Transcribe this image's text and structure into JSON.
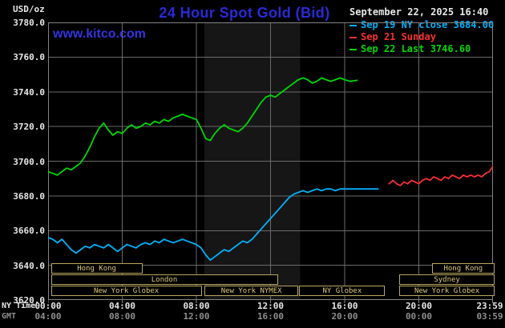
{
  "header": {
    "title": "24 Hour Spot Gold (Bid)",
    "date_line": "September 22, 2025 16:40",
    "units_label": "USD/oz",
    "site_link": "www.kitco.com"
  },
  "legend": {
    "items": [
      {
        "color": "#00b0f8",
        "text": "Sep 19 NY close 3684.00"
      },
      {
        "color": "#f83030",
        "text": "Sep 21 Sunday"
      },
      {
        "color": "#00d800",
        "text": "Sep 22 Last 3746.60"
      }
    ]
  },
  "axis": {
    "ny_time_label": "NY Time",
    "gmt_label": "GMT",
    "ny_ticks": [
      {
        "t": 0,
        "label": "00:00"
      },
      {
        "t": 4,
        "label": "04:00"
      },
      {
        "t": 8,
        "label": "08:00"
      },
      {
        "t": 12,
        "label": "12:00"
      },
      {
        "t": 16,
        "label": "16:00"
      },
      {
        "t": 20,
        "label": "20:00"
      },
      {
        "t": 23.98,
        "label": "23:59"
      }
    ],
    "gmt_ticks": [
      {
        "t": 0,
        "label": "04:00"
      },
      {
        "t": 4,
        "label": "08:00"
      },
      {
        "t": 8,
        "label": "12:00"
      },
      {
        "t": 12,
        "label": "16:00"
      },
      {
        "t": 16,
        "label": "20:00"
      },
      {
        "t": 20,
        "label": "00:00"
      },
      {
        "t": 23.98,
        "label": "03:59"
      }
    ]
  },
  "colors": {
    "background": "#000000",
    "title_blue": "#2a2ad8",
    "link_blue": "#3434e0",
    "text_white": "#e8e8e8",
    "text_gray": "#8f8f8f",
    "session_gold": "#dcc97c"
  },
  "chart_data": {
    "type": "line",
    "title": "24 Hour Spot Gold (Bid)",
    "ylabel": "USD/oz",
    "ylim": [
      3620,
      3780
    ],
    "xlim_hours": [
      0,
      24
    ],
    "grid": true,
    "grid_color": "#6b6b6b",
    "border_color": "#848484",
    "y_ticks": [
      3780,
      3760,
      3740,
      3720,
      3700,
      3680,
      3660,
      3640,
      3620
    ],
    "x_gridlines_hours": [
      4,
      8,
      12,
      16,
      20
    ],
    "shaded_bands": [
      {
        "t_start": 8.43,
        "t_end": 13.6,
        "color": "#161616"
      }
    ],
    "series": [
      {
        "id": "sep22",
        "name": "Sep 22 Last 3746.60",
        "color": "#00d800",
        "points": [
          [
            0,
            3694
          ],
          [
            0.25,
            3693
          ],
          [
            0.5,
            3692
          ],
          [
            0.75,
            3694
          ],
          [
            1,
            3696
          ],
          [
            1.25,
            3695
          ],
          [
            1.5,
            3697
          ],
          [
            1.75,
            3699
          ],
          [
            2,
            3703
          ],
          [
            2.25,
            3708
          ],
          [
            2.5,
            3714
          ],
          [
            2.75,
            3719
          ],
          [
            3,
            3722
          ],
          [
            3.25,
            3718
          ],
          [
            3.5,
            3715
          ],
          [
            3.75,
            3717
          ],
          [
            4,
            3716
          ],
          [
            4.25,
            3719
          ],
          [
            4.5,
            3721
          ],
          [
            4.75,
            3719
          ],
          [
            5,
            3720
          ],
          [
            5.25,
            3722
          ],
          [
            5.5,
            3721
          ],
          [
            5.75,
            3723
          ],
          [
            6,
            3722
          ],
          [
            6.25,
            3724
          ],
          [
            6.5,
            3723
          ],
          [
            6.75,
            3725
          ],
          [
            7,
            3726
          ],
          [
            7.25,
            3727
          ],
          [
            7.5,
            3726
          ],
          [
            7.75,
            3725
          ],
          [
            8,
            3724
          ],
          [
            8.25,
            3719
          ],
          [
            8.5,
            3713
          ],
          [
            8.75,
            3712
          ],
          [
            9,
            3716
          ],
          [
            9.25,
            3719
          ],
          [
            9.5,
            3721
          ],
          [
            9.75,
            3719
          ],
          [
            10,
            3718
          ],
          [
            10.25,
            3717
          ],
          [
            10.5,
            3719
          ],
          [
            10.75,
            3722
          ],
          [
            11,
            3726
          ],
          [
            11.25,
            3730
          ],
          [
            11.5,
            3734
          ],
          [
            11.75,
            3737
          ],
          [
            12,
            3738
          ],
          [
            12.25,
            3737
          ],
          [
            12.5,
            3739
          ],
          [
            12.75,
            3741
          ],
          [
            13,
            3743
          ],
          [
            13.25,
            3745
          ],
          [
            13.5,
            3747
          ],
          [
            13.75,
            3748
          ],
          [
            14,
            3747
          ],
          [
            14.25,
            3745
          ],
          [
            14.5,
            3746
          ],
          [
            14.75,
            3748
          ],
          [
            15,
            3747
          ],
          [
            15.25,
            3746
          ],
          [
            15.5,
            3747
          ],
          [
            15.75,
            3748
          ],
          [
            16,
            3747
          ],
          [
            16.3,
            3746
          ],
          [
            16.67,
            3746.6
          ]
        ]
      },
      {
        "id": "sep19",
        "name": "Sep 19 NY close 3684.00",
        "color": "#00b0f8",
        "points": [
          [
            0,
            3656
          ],
          [
            0.25,
            3655
          ],
          [
            0.5,
            3653
          ],
          [
            0.75,
            3655
          ],
          [
            1,
            3652
          ],
          [
            1.25,
            3649
          ],
          [
            1.5,
            3647
          ],
          [
            1.75,
            3649
          ],
          [
            2,
            3651
          ],
          [
            2.25,
            3650
          ],
          [
            2.5,
            3652
          ],
          [
            2.75,
            3651
          ],
          [
            3,
            3650
          ],
          [
            3.25,
            3652
          ],
          [
            3.5,
            3650
          ],
          [
            3.75,
            3648
          ],
          [
            4,
            3650
          ],
          [
            4.25,
            3652
          ],
          [
            4.5,
            3651
          ],
          [
            4.75,
            3650
          ],
          [
            5,
            3652
          ],
          [
            5.25,
            3653
          ],
          [
            5.5,
            3652
          ],
          [
            5.75,
            3654
          ],
          [
            6,
            3653
          ],
          [
            6.25,
            3655
          ],
          [
            6.5,
            3654
          ],
          [
            6.75,
            3653
          ],
          [
            7,
            3654
          ],
          [
            7.25,
            3655
          ],
          [
            7.5,
            3654
          ],
          [
            7.75,
            3653
          ],
          [
            8,
            3652
          ],
          [
            8.25,
            3650
          ],
          [
            8.5,
            3646
          ],
          [
            8.75,
            3643
          ],
          [
            9,
            3645
          ],
          [
            9.25,
            3647
          ],
          [
            9.5,
            3649
          ],
          [
            9.75,
            3648
          ],
          [
            10,
            3650
          ],
          [
            10.25,
            3652
          ],
          [
            10.5,
            3654
          ],
          [
            10.75,
            3653
          ],
          [
            11,
            3655
          ],
          [
            11.25,
            3658
          ],
          [
            11.5,
            3661
          ],
          [
            11.75,
            3664
          ],
          [
            12,
            3667
          ],
          [
            12.25,
            3670
          ],
          [
            12.5,
            3673
          ],
          [
            12.75,
            3676
          ],
          [
            13,
            3679
          ],
          [
            13.25,
            3681
          ],
          [
            13.5,
            3682
          ],
          [
            13.75,
            3683
          ],
          [
            14,
            3682
          ],
          [
            14.25,
            3683
          ],
          [
            14.5,
            3684
          ],
          [
            14.75,
            3683
          ],
          [
            15,
            3684
          ],
          [
            15.25,
            3684
          ],
          [
            15.5,
            3683
          ],
          [
            15.75,
            3684
          ],
          [
            16,
            3684
          ],
          [
            16.5,
            3684
          ],
          [
            17,
            3684
          ],
          [
            17.4,
            3684
          ],
          [
            17.8,
            3684
          ]
        ]
      },
      {
        "id": "sep21",
        "name": "Sep 21 Sunday",
        "color": "#f83030",
        "points": [
          [
            18.4,
            3687
          ],
          [
            18.6,
            3689
          ],
          [
            18.8,
            3687
          ],
          [
            19,
            3686
          ],
          [
            19.2,
            3688
          ],
          [
            19.4,
            3687
          ],
          [
            19.6,
            3689
          ],
          [
            19.8,
            3688
          ],
          [
            20,
            3687
          ],
          [
            20.2,
            3689
          ],
          [
            20.4,
            3690
          ],
          [
            20.6,
            3689
          ],
          [
            20.8,
            3691
          ],
          [
            21,
            3690
          ],
          [
            21.2,
            3689
          ],
          [
            21.4,
            3691
          ],
          [
            21.6,
            3690
          ],
          [
            21.8,
            3692
          ],
          [
            22,
            3691
          ],
          [
            22.2,
            3690
          ],
          [
            22.4,
            3692
          ],
          [
            22.6,
            3691
          ],
          [
            22.8,
            3692
          ],
          [
            23,
            3691
          ],
          [
            23.2,
            3692
          ],
          [
            23.4,
            3691
          ],
          [
            23.6,
            3693
          ],
          [
            23.8,
            3694
          ],
          [
            24,
            3697
          ]
        ]
      }
    ],
    "sessions": [
      {
        "row": 1,
        "t_start": 0.15,
        "t_end": 5.0,
        "label": "Hong Kong"
      },
      {
        "row": 1,
        "t_start": 20.7,
        "t_end": 24,
        "label": "Hong Kong"
      },
      {
        "row": 2,
        "t_start": 0.15,
        "t_end": 12.3,
        "label": "London"
      },
      {
        "row": 2,
        "t_start": 18.95,
        "t_end": 24,
        "label": "Sydney"
      },
      {
        "row": 3,
        "t_start": 0.15,
        "t_end": 8.2,
        "label": "New York Globex"
      },
      {
        "row": 3,
        "t_start": 8.45,
        "t_end": 13.4,
        "label": "New York NYMEX"
      },
      {
        "row": 3,
        "t_start": 13.55,
        "t_end": 18.1,
        "label": "NY Globex"
      },
      {
        "row": 3,
        "t_start": 18.95,
        "t_end": 24,
        "label": "New York Globex"
      }
    ]
  }
}
